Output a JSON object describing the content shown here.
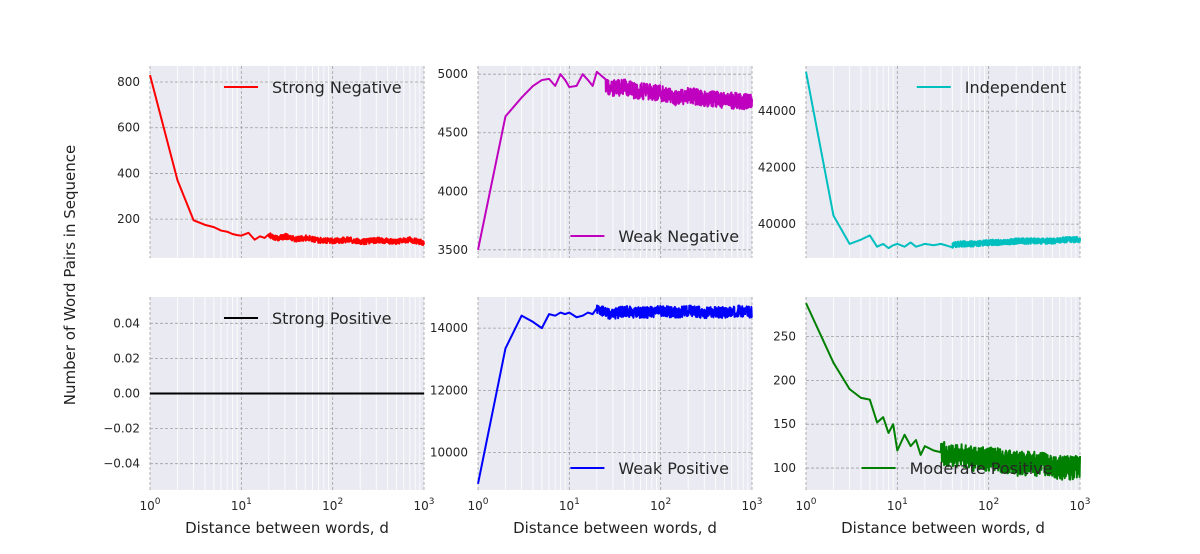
{
  "figure": {
    "ylabel": "Number of Word Pairs in Sequence",
    "xlabel": "Distance between words, d"
  },
  "chart_data": [
    {
      "type": "line",
      "series": [
        {
          "name": "Strong Negative",
          "color": "#ff0000",
          "x": [
            1,
            2,
            3,
            4,
            5,
            6,
            7,
            8,
            9,
            10,
            12,
            14,
            16,
            18,
            20,
            25,
            30,
            40,
            50,
            70,
            100,
            150,
            200,
            300,
            500,
            700,
            1000
          ],
          "y": [
            830,
            370,
            195,
            175,
            165,
            150,
            145,
            135,
            130,
            128,
            140,
            110,
            125,
            118,
            130,
            115,
            125,
            112,
            118,
            108,
            105,
            110,
            100,
            108,
            102,
            110,
            95
          ]
        }
      ],
      "xscale": "log",
      "xlim": [
        1,
        1000
      ],
      "ylim": [
        30,
        870
      ],
      "yticks": [
        200,
        400,
        600,
        800
      ],
      "ytick_labels": [
        "200",
        "400",
        "600",
        "800"
      ],
      "grid": true,
      "legend": "top-right",
      "noise": 12,
      "noise_start": 20
    },
    {
      "type": "line",
      "series": [
        {
          "name": "Weak Negative",
          "color": "#bf00bf",
          "x": [
            1,
            2,
            3,
            4,
            5,
            6,
            7,
            8,
            9,
            10,
            12,
            14,
            16,
            18,
            20,
            25,
            30,
            40,
            50,
            70,
            100,
            150,
            200,
            300,
            500,
            700,
            1000
          ],
          "y": [
            3500,
            4640,
            4800,
            4900,
            4950,
            4960,
            4900,
            5000,
            4950,
            4890,
            4900,
            5000,
            4950,
            4900,
            5020,
            4900,
            4880,
            4890,
            4860,
            4850,
            4840,
            4800,
            4820,
            4790,
            4780,
            4770,
            4760
          ]
        }
      ],
      "xscale": "log",
      "xlim": [
        1,
        1000
      ],
      "ylim": [
        3430,
        5070
      ],
      "yticks": [
        3500,
        4000,
        4500,
        5000
      ],
      "ytick_labels": [
        "3500",
        "4000",
        "4500",
        "5000"
      ],
      "grid": true,
      "legend": "lower-right",
      "noise": 70,
      "noise_start": 25
    },
    {
      "type": "line",
      "series": [
        {
          "name": "Independent",
          "color": "#00bfbf",
          "x": [
            1,
            2,
            3,
            4,
            5,
            6,
            7,
            8,
            9,
            10,
            12,
            14,
            16,
            18,
            20,
            25,
            30,
            40,
            50,
            70,
            100,
            150,
            200,
            300,
            500,
            700,
            1000
          ],
          "y": [
            45400,
            40300,
            39300,
            39450,
            39600,
            39200,
            39300,
            39150,
            39250,
            39300,
            39200,
            39350,
            39200,
            39250,
            39300,
            39250,
            39300,
            39250,
            39300,
            39300,
            39350,
            39350,
            39400,
            39400,
            39400,
            39450,
            39450
          ]
        }
      ],
      "xscale": "log",
      "xlim": [
        1,
        1000
      ],
      "ylim": [
        38800,
        45600
      ],
      "yticks": [
        40000,
        42000,
        44000
      ],
      "ytick_labels": [
        "40000",
        "42000",
        "44000"
      ],
      "grid": true,
      "legend": "top-right",
      "noise": 100,
      "noise_start": 40
    },
    {
      "type": "line",
      "series": [
        {
          "name": "Strong Positive",
          "color": "#000000",
          "x": [
            1,
            1000
          ],
          "y": [
            0,
            0
          ]
        }
      ],
      "xscale": "log",
      "xlim": [
        1,
        1000
      ],
      "ylim": [
        -0.055,
        0.055
      ],
      "yticks": [
        -0.04,
        -0.02,
        0.0,
        0.02,
        0.04
      ],
      "ytick_labels": [
        "−0.04",
        "−0.02",
        "0.00",
        "0.02",
        "0.04"
      ],
      "grid": true,
      "legend": "top-right",
      "noise": 0,
      "noise_start": 1000
    },
    {
      "type": "line",
      "series": [
        {
          "name": "Weak Positive",
          "color": "#0000ff",
          "x": [
            1,
            2,
            3,
            4,
            5,
            6,
            7,
            8,
            9,
            10,
            12,
            14,
            16,
            18,
            20,
            25,
            30,
            40,
            50,
            70,
            100,
            150,
            200,
            300,
            500,
            700,
            1000
          ],
          "y": [
            9000,
            13350,
            14400,
            14200,
            14000,
            14450,
            14400,
            14500,
            14450,
            14500,
            14350,
            14400,
            14500,
            14450,
            14600,
            14500,
            14450,
            14550,
            14500,
            14500,
            14550,
            14500,
            14550,
            14500,
            14500,
            14550,
            14500
          ]
        }
      ],
      "xscale": "log",
      "xlim": [
        1,
        1000
      ],
      "ylim": [
        8800,
        15000
      ],
      "yticks": [
        10000,
        12000,
        14000
      ],
      "ytick_labels": [
        "10000",
        "12000",
        "14000"
      ],
      "grid": true,
      "legend": "lower-right",
      "noise": 180,
      "noise_start": 20
    },
    {
      "type": "line",
      "series": [
        {
          "name": "Moderate Positive",
          "color": "#008000",
          "x": [
            1,
            2,
            3,
            4,
            5,
            6,
            7,
            8,
            9,
            10,
            12,
            14,
            16,
            18,
            20,
            25,
            30,
            40,
            50,
            70,
            100,
            150,
            200,
            300,
            500,
            700,
            1000
          ],
          "y": [
            288,
            220,
            190,
            180,
            178,
            152,
            158,
            140,
            150,
            120,
            138,
            125,
            132,
            115,
            125,
            120,
            118,
            112,
            115,
            110,
            110,
            108,
            105,
            105,
            102,
            100,
            100
          ]
        }
      ],
      "xscale": "log",
      "xlim": [
        1,
        1000
      ],
      "ylim": [
        75,
        295
      ],
      "yticks": [
        100,
        150,
        200,
        250
      ],
      "ytick_labels": [
        "100",
        "150",
        "200",
        "250"
      ],
      "grid": true,
      "legend": "lower-right",
      "noise": 14,
      "noise_start": 30
    }
  ]
}
